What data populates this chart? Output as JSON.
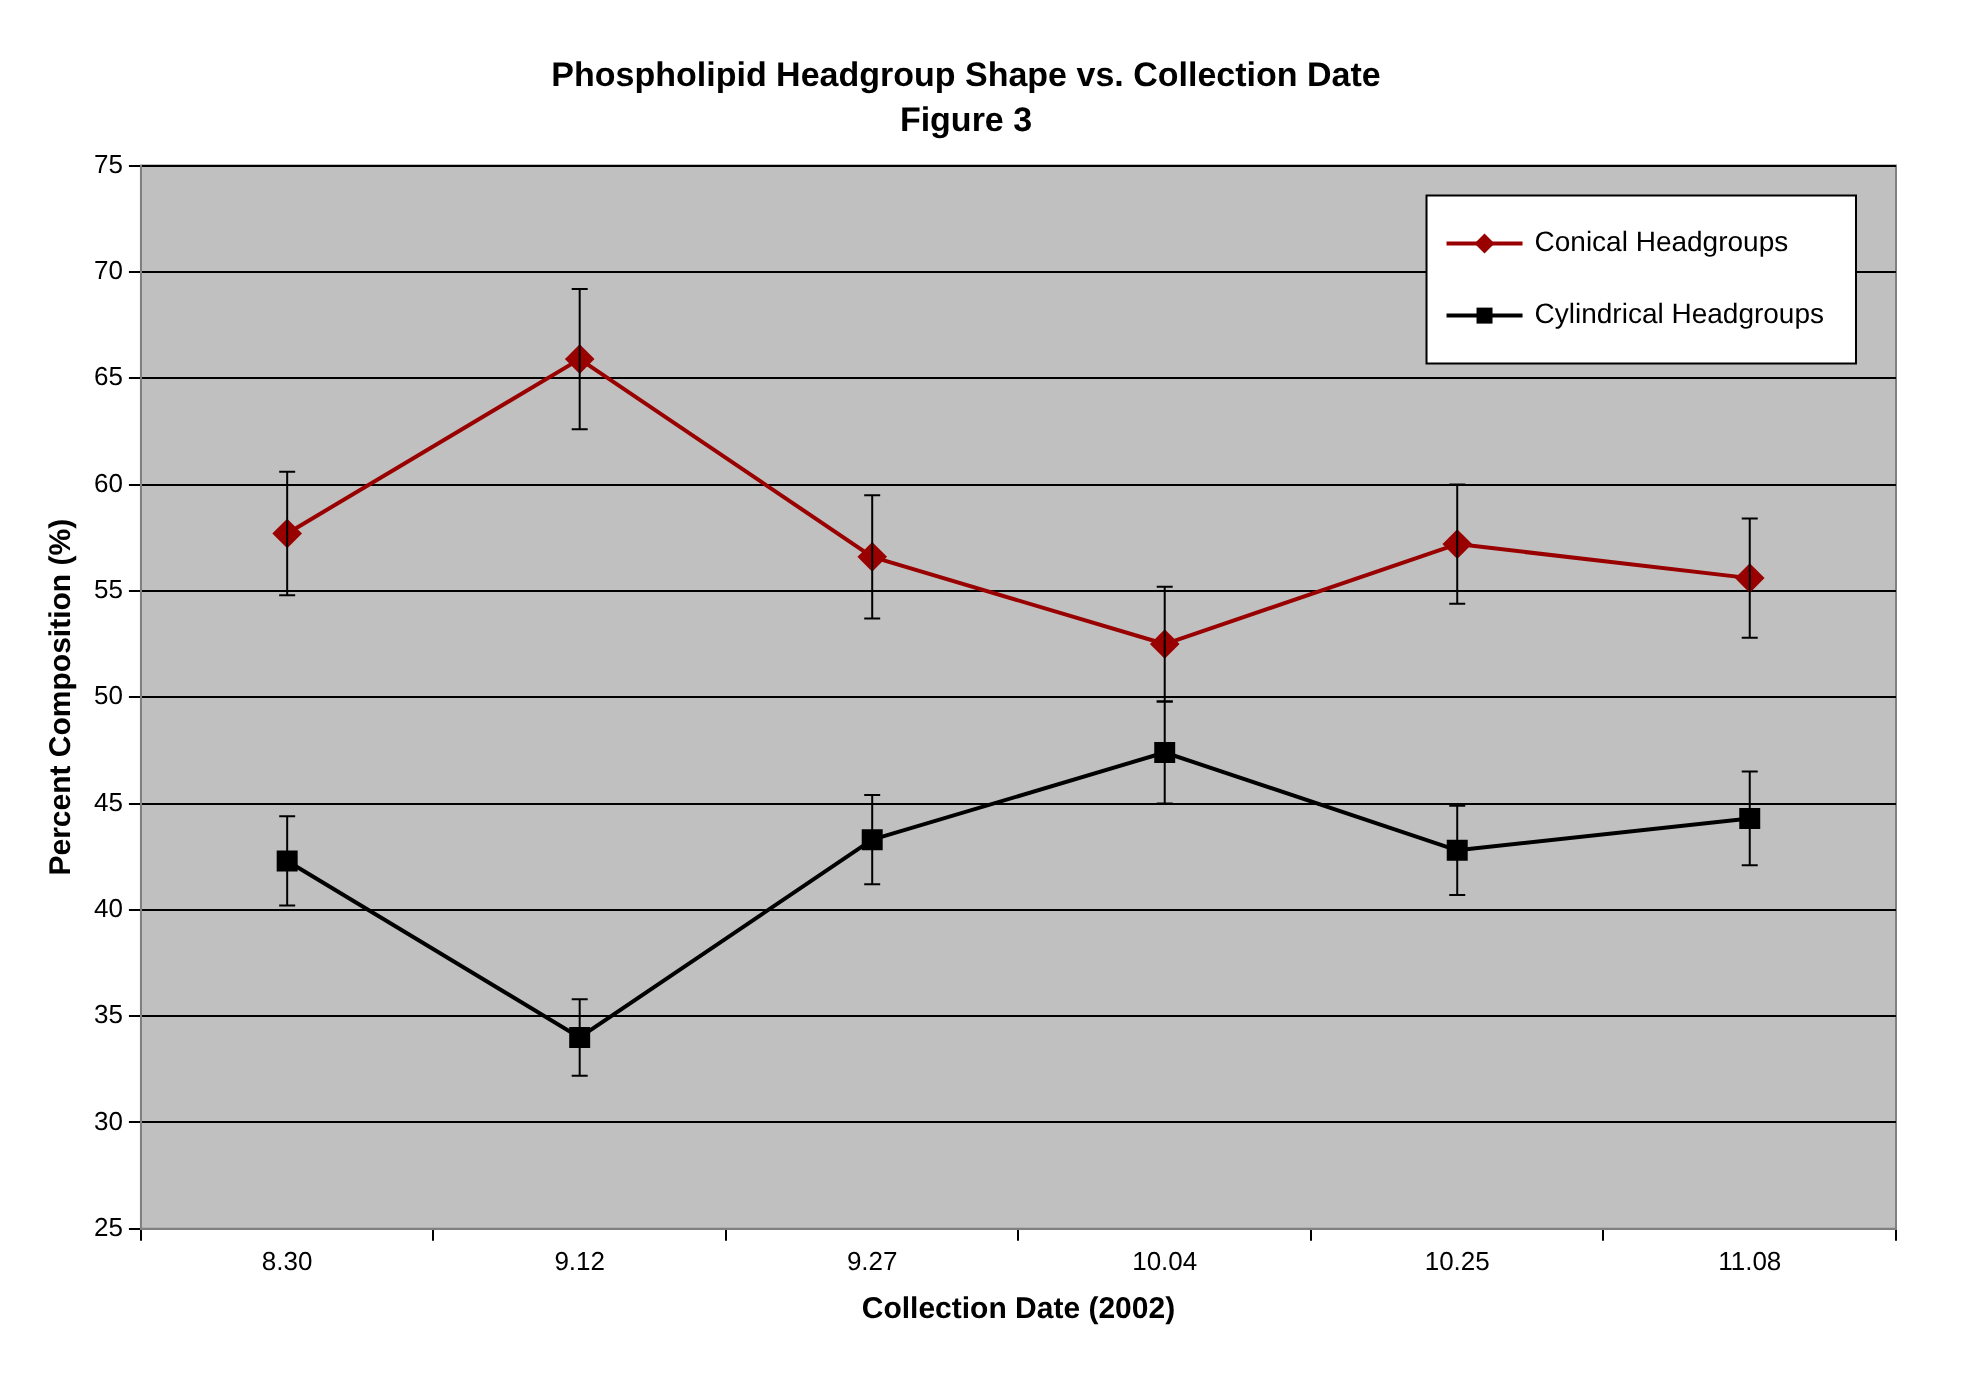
{
  "chart_data": {
    "type": "line",
    "title": "Phospholipid Headgroup Shape vs. Collection Date",
    "subtitle": "Figure 3",
    "xlabel": "Collection Date (2002)",
    "ylabel": "Percent Composition (%)",
    "categories": [
      "8.30",
      "9.12",
      "9.27",
      "10.04",
      "10.25",
      "11.08"
    ],
    "series": [
      {
        "name": "Conical Headgroups",
        "color": "#990000",
        "marker": "diamond",
        "values": [
          57.7,
          65.9,
          56.6,
          52.5,
          57.2,
          55.6
        ],
        "errors": [
          2.9,
          3.3,
          2.9,
          2.7,
          2.8,
          2.8
        ]
      },
      {
        "name": "Cylindrical Headgroups",
        "color": "#000000",
        "marker": "square",
        "values": [
          42.3,
          34.0,
          43.3,
          47.4,
          42.8,
          44.3
        ],
        "errors": [
          2.1,
          1.8,
          2.1,
          2.4,
          2.1,
          2.2
        ]
      }
    ],
    "ylim": [
      25,
      75
    ],
    "yticks": [
      25,
      30,
      35,
      40,
      45,
      50,
      55,
      60,
      65,
      70,
      75
    ],
    "grid": "y",
    "legend": "top right"
  }
}
